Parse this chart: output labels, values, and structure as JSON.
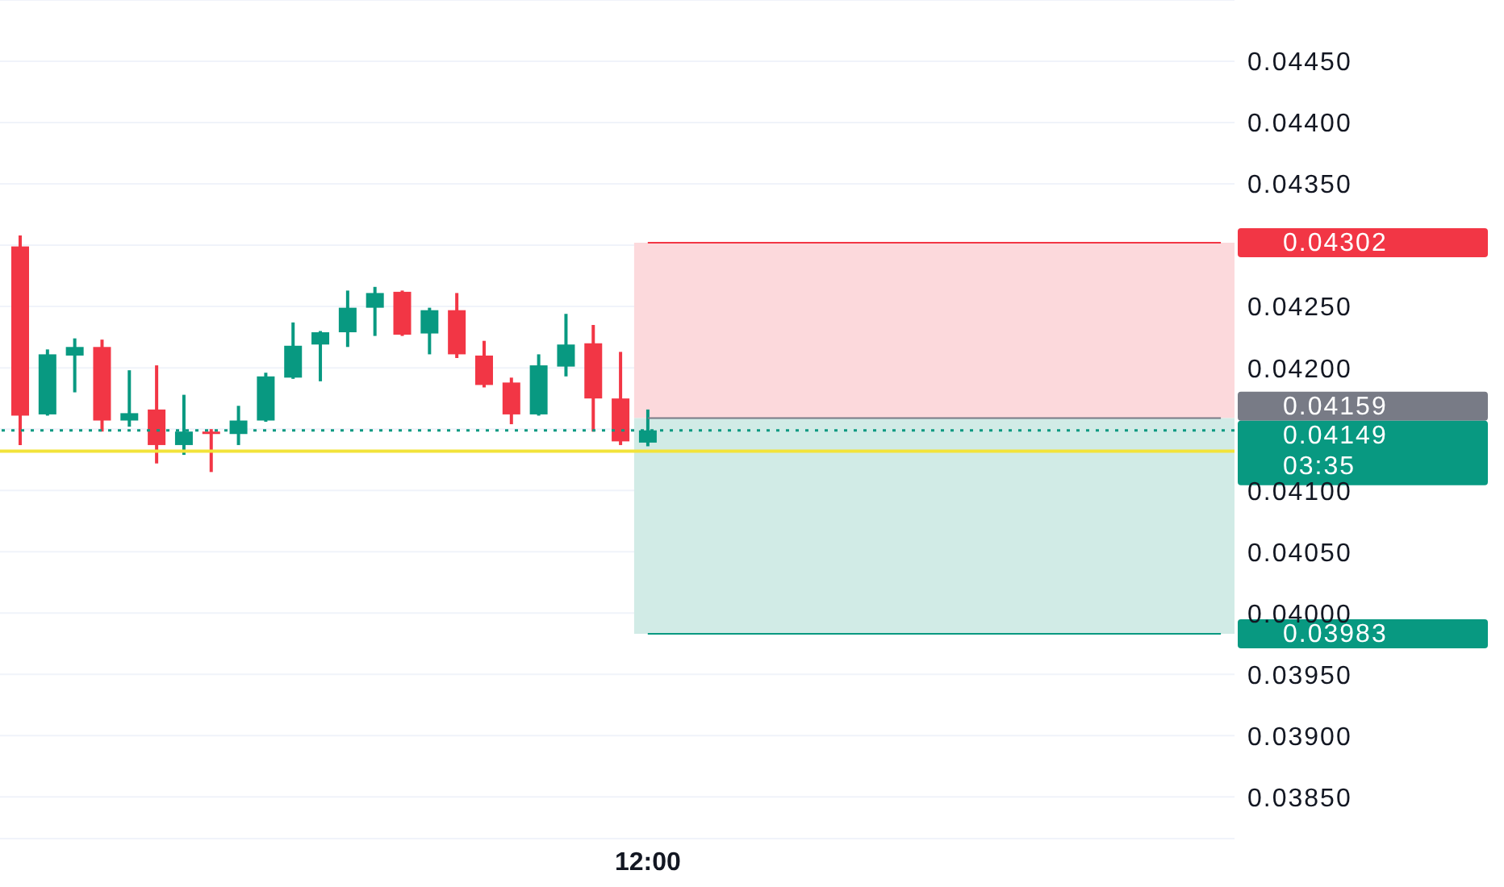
{
  "chart_data": {
    "type": "candlestick",
    "categories": [
      null,
      null,
      null,
      null,
      null,
      null,
      null,
      null,
      null,
      null,
      null,
      null,
      null,
      null,
      null,
      null,
      null,
      null,
      null,
      null,
      null,
      null,
      null,
      "12:00",
      null,
      null,
      null,
      null,
      null,
      null,
      null,
      null,
      null,
      null,
      null,
      null,
      null,
      null,
      null,
      null,
      null,
      null,
      null,
      null,
      null
    ],
    "ohlc": [
      [
        0.04299,
        0.04308,
        0.04137,
        0.04161
      ],
      [
        0.04162,
        0.04215,
        0.04161,
        0.04211
      ],
      [
        0.0421,
        0.04224,
        0.0418,
        0.04217
      ],
      [
        0.04217,
        0.04223,
        0.04148,
        0.04157
      ],
      [
        0.04157,
        0.04198,
        0.04152,
        0.04163
      ],
      [
        0.04166,
        0.04202,
        0.04122,
        0.04137
      ],
      [
        0.04137,
        0.04178,
        0.04129,
        0.04148
      ],
      [
        0.04148,
        0.0415,
        0.04115,
        0.04146
      ],
      [
        0.04146,
        0.04169,
        0.04137,
        0.04157
      ],
      [
        0.04157,
        0.04196,
        0.04156,
        0.04193
      ],
      [
        0.04192,
        0.04237,
        0.04191,
        0.04218
      ],
      [
        0.04219,
        0.0423,
        0.04189,
        0.04229
      ],
      [
        0.04229,
        0.04263,
        0.04217,
        0.04249
      ],
      [
        0.04249,
        0.04266,
        0.04226,
        0.04261
      ],
      [
        0.04262,
        0.04263,
        0.04226,
        0.04227
      ],
      [
        0.04228,
        0.04249,
        0.04211,
        0.04247
      ],
      [
        0.04247,
        0.04261,
        0.04208,
        0.04211
      ],
      [
        0.0421,
        0.04222,
        0.04184,
        0.04186
      ],
      [
        0.04188,
        0.04192,
        0.04154,
        0.04162
      ],
      [
        0.04162,
        0.04211,
        0.04161,
        0.04202
      ],
      [
        0.04201,
        0.04244,
        0.04193,
        0.04219
      ],
      [
        0.0422,
        0.04235,
        0.04148,
        0.04175
      ],
      [
        0.04175,
        0.04213,
        0.04137,
        0.0414
      ],
      [
        0.04139,
        0.04166,
        0.04136,
        0.04149
      ],
      null,
      null,
      null,
      null,
      null,
      null,
      null,
      null,
      null,
      null,
      null,
      null,
      null,
      null,
      null,
      null,
      null,
      null,
      null,
      null,
      null
    ],
    "colors": [
      "#f23645",
      "#089981",
      "#089981",
      "#f23645",
      "#089981",
      "#f23645",
      "#089981",
      "#f23645",
      "#089981",
      "#089981",
      "#089981",
      "#089981",
      "#089981",
      "#089981",
      "#f23645",
      "#089981",
      "#f23645",
      "#f23645",
      "#f23645",
      "#089981",
      "#089981",
      "#f23645",
      "#f23645",
      "#089981",
      null,
      null,
      null,
      null,
      null,
      null,
      null,
      null,
      null,
      null,
      null,
      null,
      null,
      null,
      null,
      null,
      null,
      null,
      null,
      null,
      null
    ],
    "ylim": [
      0.03816,
      0.045
    ],
    "yticks": [
      {
        "value": 0.0385,
        "label": "0.03850"
      },
      {
        "value": 0.039,
        "label": "0.03900"
      },
      {
        "value": 0.0395,
        "label": "0.03950"
      },
      {
        "value": 0.04,
        "label": "0.04000"
      },
      {
        "value": 0.0405,
        "label": "0.04050"
      },
      {
        "value": 0.041,
        "label": "0.04100"
      },
      {
        "value": 0.0415,
        "label": null
      },
      {
        "value": 0.042,
        "label": "0.04200"
      },
      {
        "value": 0.0425,
        "label": "0.04250"
      },
      {
        "value": 0.043,
        "label": null
      },
      {
        "value": 0.0435,
        "label": "0.04350"
      },
      {
        "value": 0.044,
        "label": "0.04400"
      },
      {
        "value": 0.0445,
        "label": "0.04450"
      }
    ],
    "grid": "y",
    "bands": [
      {
        "axis": "y",
        "from": 0.04159,
        "to": 0.04302,
        "color": "#fcd9dc"
      },
      {
        "axis": "y",
        "from": 0.03983,
        "to": 0.04159,
        "color": "#d1ebe6"
      }
    ],
    "ref_lines": [
      {
        "axis": "y",
        "value": 0.04132,
        "color": "#f2e33a",
        "line_style": "solid"
      },
      {
        "axis": "y",
        "value": 0.04302,
        "label": "0.04302",
        "color": "#f23645"
      },
      {
        "axis": "y",
        "value": 0.04159,
        "label": "0.04159",
        "color": "#787b86"
      },
      {
        "axis": "y",
        "value": 0.04149,
        "label": "0.04149\n03:35",
        "color": "#089981",
        "line_style": "dotted"
      },
      {
        "axis": "y",
        "value": 0.03983,
        "label": "0.03983",
        "color": "#089981"
      }
    ]
  }
}
